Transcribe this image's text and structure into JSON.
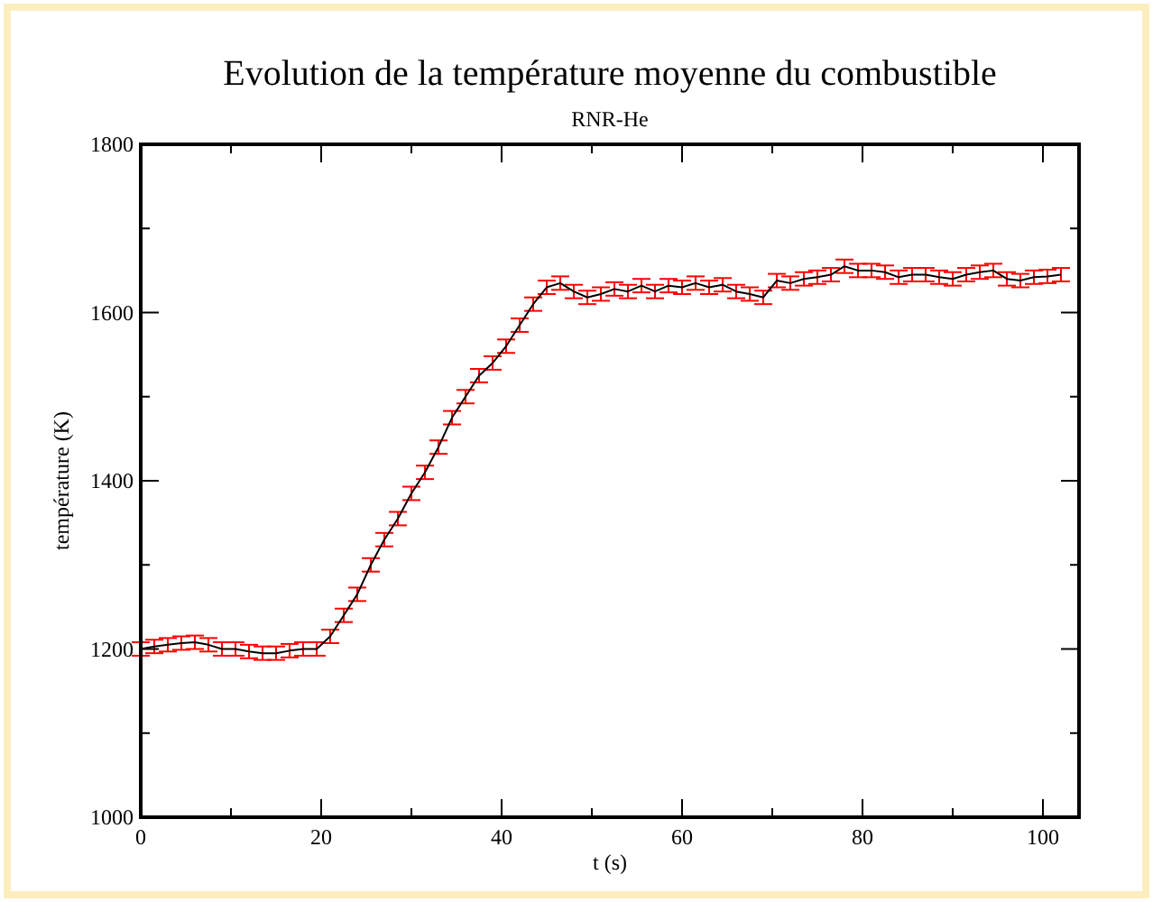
{
  "chart_data": {
    "type": "line",
    "title": "Evolution de la température moyenne du combustible",
    "subtitle": "RNR-He",
    "xlabel": "t (s)",
    "ylabel": "température (K)",
    "x": [
      0,
      1.5,
      3,
      4.5,
      6,
      7.5,
      9,
      10.5,
      12,
      13.5,
      15,
      16.5,
      18,
      19.5,
      21,
      22.5,
      24,
      25.5,
      27,
      28.5,
      30,
      31.5,
      33,
      34.5,
      36,
      37.5,
      39,
      40.5,
      42,
      43.5,
      45,
      46.5,
      48,
      49.5,
      51,
      52.5,
      54,
      55.5,
      57,
      58.5,
      60,
      61.5,
      63,
      64.5,
      66,
      67.5,
      69,
      70.5,
      72,
      73.5,
      75,
      76.5,
      78,
      79.5,
      81,
      82.5,
      84,
      85.5,
      87,
      88.5,
      90,
      91.5,
      93,
      94.5,
      96,
      97.5,
      99,
      100.5,
      102
    ],
    "series": [
      {
        "color": "#000000",
        "values": [
          1200,
          1203,
          1205,
          1207,
          1208,
          1205,
          1200,
          1200,
          1197,
          1195,
          1195,
          1198,
          1200,
          1200,
          1215,
          1240,
          1265,
          1300,
          1330,
          1355,
          1385,
          1410,
          1440,
          1475,
          1500,
          1525,
          1540,
          1560,
          1585,
          1610,
          1630,
          1635,
          1625,
          1618,
          1622,
          1628,
          1625,
          1632,
          1625,
          1632,
          1630,
          1635,
          1630,
          1633,
          1625,
          1622,
          1618,
          1638,
          1635,
          1640,
          1642,
          1645,
          1655,
          1650,
          1650,
          1648,
          1642,
          1645,
          1645,
          1642,
          1640,
          1645,
          1648,
          1650,
          1640,
          1638,
          1642,
          1643,
          1645
        ],
        "errors": [
          8,
          8,
          8,
          8,
          8,
          8,
          8,
          8,
          8,
          8,
          8,
          8,
          8,
          8,
          8,
          8,
          8,
          8,
          8,
          8,
          8,
          8,
          8,
          8,
          8,
          8,
          8,
          8,
          8,
          8,
          8,
          8,
          8,
          8,
          8,
          8,
          8,
          8,
          8,
          8,
          8,
          8,
          8,
          8,
          8,
          8,
          8,
          8,
          8,
          8,
          8,
          8,
          8,
          8,
          8,
          8,
          8,
          8,
          8,
          8,
          8,
          8,
          8,
          8,
          8,
          8,
          8,
          8,
          8
        ]
      }
    ],
    "xlim": [
      0,
      104
    ],
    "xticks": [
      0,
      {
        "value": 10,
        "label": null
      },
      20,
      {
        "value": 30,
        "label": null
      },
      40,
      {
        "value": 50,
        "label": null
      },
      60,
      {
        "value": 70,
        "label": null
      },
      80,
      {
        "value": 90,
        "label": null
      },
      100
    ],
    "ylim": [
      1000,
      1800
    ],
    "yticks": [
      1000,
      {
        "value": 1100,
        "label": null
      },
      1200,
      {
        "value": 1300,
        "label": null
      },
      1400,
      {
        "value": 1500,
        "label": null
      },
      1600,
      {
        "value": 1700,
        "label": null
      },
      1800
    ],
    "grid": false,
    "marker": "none",
    "line_style": "solid"
  }
}
